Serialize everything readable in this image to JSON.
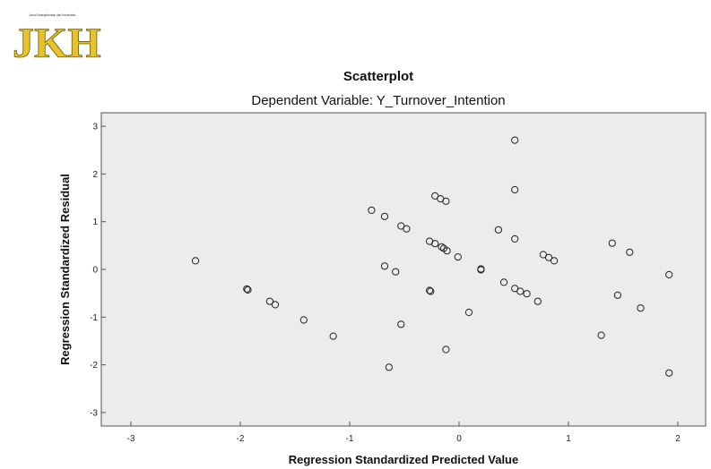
{
  "logo": {
    "text": "JKH",
    "tagline": "Jurnal Kesejahteraan dan Kesehatan"
  },
  "chart_data": {
    "type": "scatter",
    "title": "Scatterplot",
    "subtitle": "Dependent Variable: Y_Turnover_Intention",
    "xlabel": "Regression Standardized Predicted Value",
    "ylabel": "Regression Standardized Residual",
    "xlim": [
      -3.3,
      2.05
    ],
    "ylim": [
      -3.1,
      3.1
    ],
    "xticks": [
      -3,
      -2,
      -1,
      0,
      1,
      2
    ],
    "yticks": [
      3,
      2,
      1,
      0,
      -1,
      -2,
      -3
    ],
    "xtick_labels": [
      "-3",
      "-2",
      "-1",
      "0",
      "1",
      "2"
    ],
    "ytick_labels": [
      "3",
      "2",
      "1",
      "0",
      "-1",
      "-2",
      "-3"
    ],
    "grid": false,
    "background": "#ececec",
    "points": [
      {
        "x": -2.41,
        "y": 0.18
      },
      {
        "x": -1.94,
        "y": -0.41
      },
      {
        "x": -1.93,
        "y": -0.43
      },
      {
        "x": -1.73,
        "y": -0.67
      },
      {
        "x": -1.68,
        "y": -0.74
      },
      {
        "x": -1.42,
        "y": -1.06
      },
      {
        "x": -1.15,
        "y": -1.4
      },
      {
        "x": -0.8,
        "y": 1.24
      },
      {
        "x": -0.68,
        "y": 1.11
      },
      {
        "x": -0.68,
        "y": 0.07
      },
      {
        "x": -0.58,
        "y": -0.05
      },
      {
        "x": -0.53,
        "y": 0.91
      },
      {
        "x": -0.48,
        "y": 0.85
      },
      {
        "x": -0.53,
        "y": -1.15
      },
      {
        "x": -0.64,
        "y": -2.05
      },
      {
        "x": -0.22,
        "y": 1.54
      },
      {
        "x": -0.17,
        "y": 1.48
      },
      {
        "x": -0.12,
        "y": 1.43
      },
      {
        "x": -0.27,
        "y": 0.59
      },
      {
        "x": -0.22,
        "y": 0.54
      },
      {
        "x": -0.16,
        "y": 0.47
      },
      {
        "x": -0.14,
        "y": 0.44
      },
      {
        "x": -0.11,
        "y": 0.39
      },
      {
        "x": -0.01,
        "y": 0.26
      },
      {
        "x": -0.27,
        "y": -0.44
      },
      {
        "x": -0.26,
        "y": -0.46
      },
      {
        "x": 0.2,
        "y": 0.01
      },
      {
        "x": 0.2,
        "y": -0.01
      },
      {
        "x": 0.09,
        "y": -0.9
      },
      {
        "x": -0.12,
        "y": -1.68
      },
      {
        "x": 0.36,
        "y": 0.83
      },
      {
        "x": 0.41,
        "y": -0.27
      },
      {
        "x": 0.51,
        "y": 2.71
      },
      {
        "x": 0.51,
        "y": 1.67
      },
      {
        "x": 0.51,
        "y": 0.64
      },
      {
        "x": 0.51,
        "y": -0.4
      },
      {
        "x": 0.56,
        "y": -0.46
      },
      {
        "x": 0.62,
        "y": -0.51
      },
      {
        "x": 0.72,
        "y": -0.67
      },
      {
        "x": 0.77,
        "y": 0.31
      },
      {
        "x": 0.82,
        "y": 0.25
      },
      {
        "x": 0.87,
        "y": 0.18
      },
      {
        "x": 1.3,
        "y": -1.38
      },
      {
        "x": 1.4,
        "y": 0.55
      },
      {
        "x": 1.45,
        "y": -0.54
      },
      {
        "x": 1.56,
        "y": 0.36
      },
      {
        "x": 1.66,
        "y": -0.81
      },
      {
        "x": 1.92,
        "y": -0.11
      },
      {
        "x": 1.92,
        "y": -2.17
      }
    ]
  }
}
